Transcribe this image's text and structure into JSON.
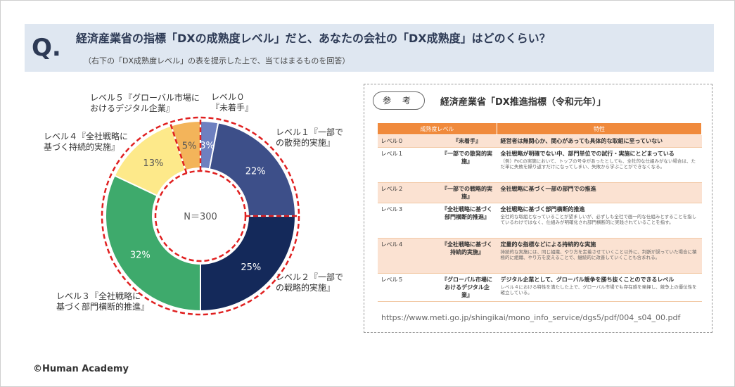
{
  "question": {
    "mark": "Q.",
    "title": "経済産業省の指標「DXの成熟度レベル」だと、あなたの会社の「DX成熟度」はどのくらい？",
    "subtitle": "（右下の「DX成熟度レベル」の表を提示した上で、当てはまるものを回答）"
  },
  "chart_data": {
    "type": "donut",
    "center_label": "N＝300",
    "slices": [
      {
        "label_lines": [
          "レベル０",
          "『未着手』"
        ],
        "value": 3,
        "display": "3%",
        "color": "#6e80c0"
      },
      {
        "label_lines": [
          "レベル１『一部で",
          "の散発的実施』"
        ],
        "value": 22,
        "display": "22%",
        "color": "#3d4f89"
      },
      {
        "label_lines": [
          "レベル２『一部で",
          "の戦略的実施』"
        ],
        "value": 25,
        "display": "25%",
        "color": "#14295a"
      },
      {
        "label_lines": [
          "レベル３『全社戦略に",
          "基づく部門横断的推進』"
        ],
        "value": 32,
        "display": "32%",
        "color": "#3eaa6c"
      },
      {
        "label_lines": [
          "レベル４『全社戦略に",
          "基づく持続的実施』"
        ],
        "value": 13,
        "display": "13%",
        "color": "#fde98a"
      },
      {
        "label_lines": [
          "レベル５『グローバル市場に",
          "おけるデジタル企業』"
        ],
        "value": 5,
        "display": "5%",
        "color": "#f3b45a"
      }
    ],
    "highlight": "dashed-red"
  },
  "reference": {
    "badge": "参 考",
    "title": "経済産業省「DX推進指標（令和元年）」",
    "headers": [
      "成熟度レベル",
      "特性"
    ],
    "rows": [
      {
        "level": "レベル０",
        "name": "『未着手』",
        "desc": "経営者は無関心か、関心があっても具体的な取組に至っていない",
        "note": ""
      },
      {
        "level": "レベル１",
        "name": "『一部での散発的実施』",
        "desc": "全社戦略が明確でない中、部門単位での試行・実施にとどまっている",
        "note": "（例）PoCの実施において、トップの号令があったとしても、全社的な仕組みがない場合は、ただ単に失敗を繰り返すだけになってしまい、失敗から学ぶことができなくなる。"
      },
      {
        "level": "レベル２",
        "name": "『一部での戦略的実施』",
        "desc": "全社戦略に基づく一部の部門での推進",
        "note": ""
      },
      {
        "level": "レベル３",
        "name": "『全社戦略に基づく部門横断的推進』",
        "desc": "全社戦略に基づく部門横断的推進",
        "note": "全社的な取組となっていることが望ましいが、必ずしも全社で画一的な仕組みとすることを指しているわけではなく、仕組みが明確化され部門横断的に実践されていることを指す。"
      },
      {
        "level": "レベル４",
        "name": "『全社戦略に基づく持続的実施』",
        "desc": "定量的な指標などによる持続的な実施",
        "note": "持続的な実施には、同じ組織、やり方を定着させていくこと以外に、判断が誤っていた場合に積極的に組織、やり方を変えることで、継続的に改善していくことも含まれる。"
      },
      {
        "level": "レベル５",
        "name": "『グローバル市場におけるデジタル企業』",
        "desc": "デジタル企業として、グローバル競争を勝ち抜くことのできるレベル",
        "note": "レベル４における特性を満たした上で、グローバル市場でも存在感を発揮し、競争上の優位性を確立している。"
      }
    ],
    "url": "https://www.meti.go.jp/shingikai/mono_info_service/dgs5/pdf/004_s04_00.pdf"
  },
  "footer": {
    "copyright": "©Human Academy"
  }
}
